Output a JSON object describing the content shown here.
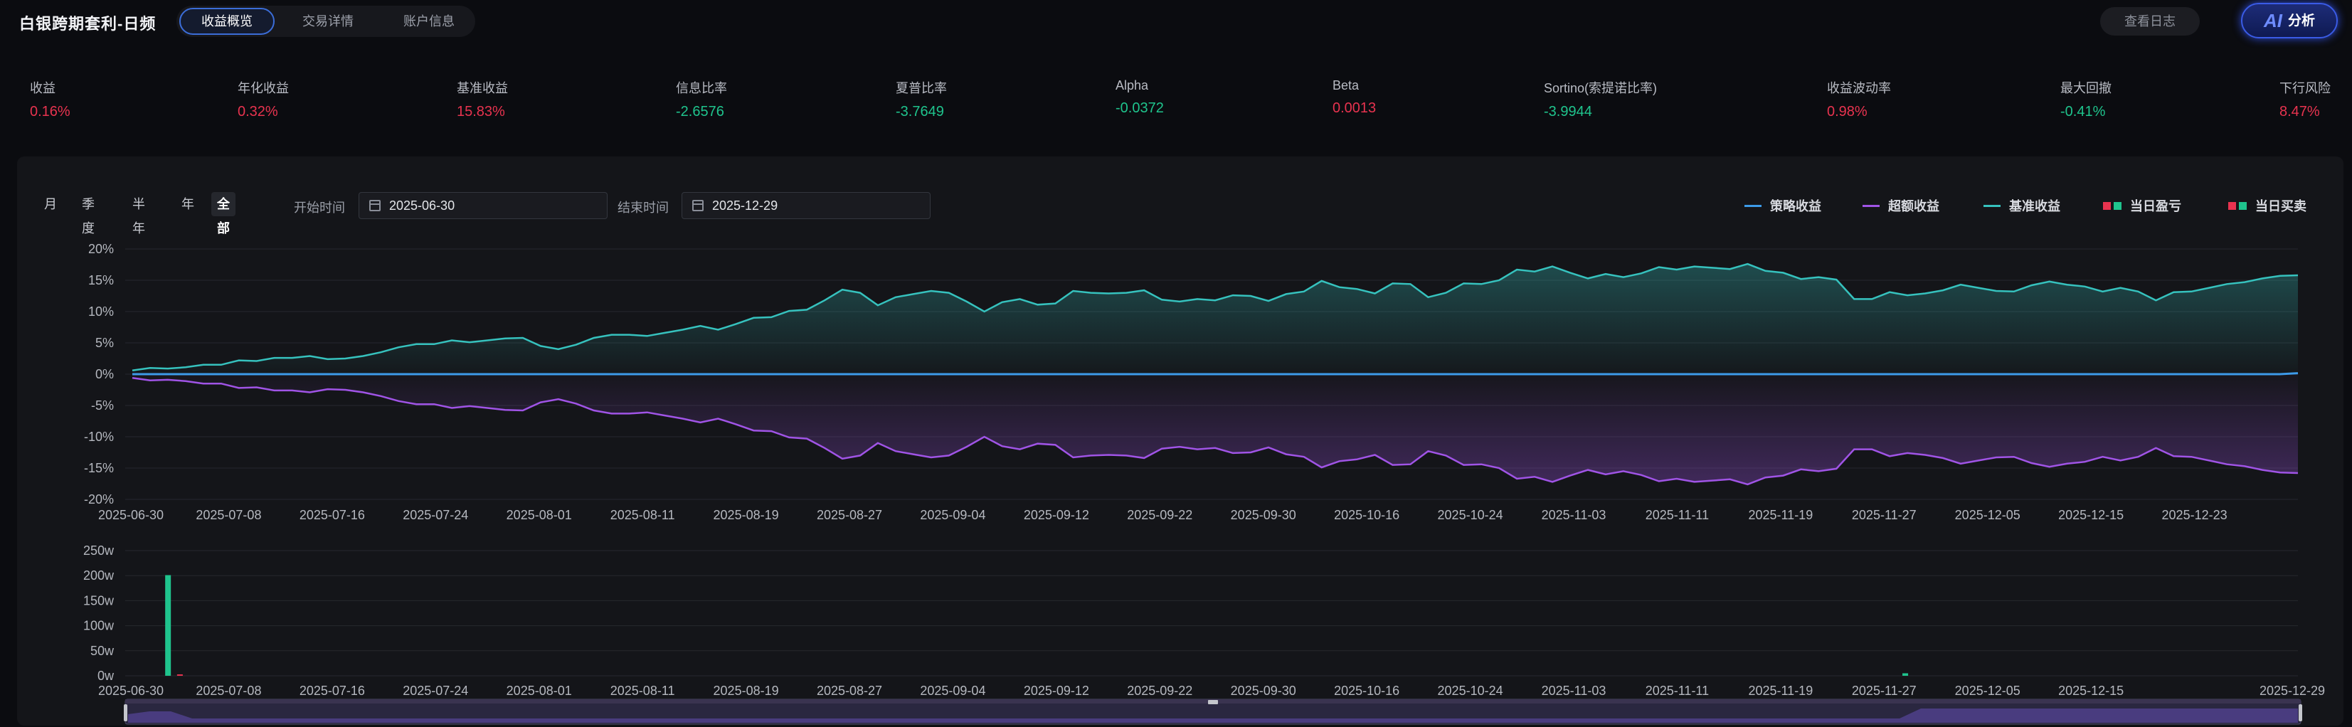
{
  "app": {
    "title": "白银跨期套利-日频"
  },
  "tabs": [
    {
      "label": "收益概览",
      "active": true
    },
    {
      "label": "交易详情",
      "active": false
    },
    {
      "label": "账户信息",
      "active": false
    }
  ],
  "header_actions": {
    "log_label": "查看日志",
    "ai_icon_text": "AI",
    "ai_label": "分析"
  },
  "metrics": [
    {
      "label": "收益",
      "value": "0.16%",
      "tone": "red"
    },
    {
      "label": "年化收益",
      "value": "0.32%",
      "tone": "red"
    },
    {
      "label": "基准收益",
      "value": "15.83%",
      "tone": "red"
    },
    {
      "label": "信息比率",
      "value": "-2.6576",
      "tone": "green"
    },
    {
      "label": "夏普比率",
      "value": "-3.7649",
      "tone": "green"
    },
    {
      "label": "Alpha",
      "value": "-0.0372",
      "tone": "green"
    },
    {
      "label": "Beta",
      "value": "0.0013",
      "tone": "red"
    },
    {
      "label": "Sortino(索提诺比率)",
      "value": "-3.9944",
      "tone": "green"
    },
    {
      "label": "收益波动率",
      "value": "0.98%",
      "tone": "red"
    },
    {
      "label": "最大回撤",
      "value": "-0.41%",
      "tone": "green"
    },
    {
      "label": "下行风险",
      "value": "8.47%",
      "tone": "red"
    }
  ],
  "periods": [
    {
      "label": "月",
      "active": false
    },
    {
      "label": "季度",
      "active": false
    },
    {
      "label": "半年",
      "active": false
    },
    {
      "label": "年",
      "active": false
    },
    {
      "label": "全部",
      "active": true
    }
  ],
  "date_range": {
    "start_label": "开始时间",
    "start_value": "2025-06-30",
    "end_label": "结束时间",
    "end_value": "2025-12-29"
  },
  "legend": [
    {
      "label": "策略收益",
      "color": "#3d9be9",
      "kind": "line"
    },
    {
      "label": "超额收益",
      "color": "#a054e6",
      "kind": "line"
    },
    {
      "label": "基准收益",
      "color": "#36c2be",
      "kind": "line"
    },
    {
      "label": "当日盈亏",
      "colors": [
        "#e8334f",
        "#1fc48d"
      ],
      "kind": "squares"
    },
    {
      "label": "当日买卖",
      "colors": [
        "#e8334f",
        "#1fc48d"
      ],
      "kind": "squares"
    }
  ],
  "chart_data": [
    {
      "type": "line",
      "ylim": [
        -20,
        20
      ],
      "yticks": [
        "20%",
        "15%",
        "10%",
        "5%",
        "0%",
        "-5%",
        "-10%",
        "-15%",
        "-20%"
      ],
      "x_start": "2025-06-30",
      "x_end": "2025-12-29",
      "x_tick_labels": [
        "2025-06-30",
        "2025-07-08",
        "2025-07-16",
        "2025-07-24",
        "2025-08-01",
        "2025-08-11",
        "2025-08-19",
        "2025-08-27",
        "2025-09-04",
        "2025-09-12",
        "2025-09-22",
        "2025-09-30",
        "2025-10-16",
        "2025-10-24",
        "2025-11-03",
        "2025-11-11",
        "2025-11-19",
        "2025-11-27",
        "2025-12-05",
        "2025-12-15",
        "2025-12-23"
      ],
      "series": [
        {
          "name": "基准收益",
          "color": "#36c2be",
          "values": [
            0.6,
            1.0,
            0.9,
            1.1,
            1.5,
            1.5,
            2.2,
            2.1,
            2.6,
            2.6,
            2.9,
            2.4,
            2.5,
            2.9,
            3.5,
            4.3,
            4.8,
            4.8,
            5.4,
            5.1,
            5.4,
            5.7,
            5.8,
            4.5,
            4.0,
            4.7,
            5.8,
            6.3,
            6.3,
            6.1,
            6.6,
            7.1,
            7.7,
            7.1,
            8.0,
            9.0,
            9.1,
            10.1,
            10.3,
            11.8,
            13.5,
            13.0,
            11.0,
            12.3,
            12.8,
            13.3,
            13.0,
            11.6,
            10.0,
            11.5,
            12.0,
            11.1,
            11.3,
            13.3,
            13.0,
            12.9,
            13.0,
            13.4,
            11.9,
            11.6,
            12.0,
            11.8,
            12.6,
            12.5,
            11.7,
            12.8,
            13.2,
            14.9,
            13.9,
            13.6,
            12.9,
            14.5,
            14.4,
            12.3,
            13.0,
            14.5,
            14.4,
            15.0,
            16.7,
            16.4,
            17.2,
            16.2,
            15.3,
            16.0,
            15.5,
            16.1,
            17.1,
            16.7,
            17.2,
            17.0,
            16.8,
            17.6,
            16.5,
            16.2,
            15.2,
            15.5,
            15.1,
            12.0,
            12.0,
            13.1,
            12.6,
            12.9,
            13.4,
            14.3,
            13.8,
            13.3,
            13.2,
            14.2,
            14.8,
            14.3,
            14.0,
            13.2,
            13.8,
            13.2,
            11.8,
            13.1,
            13.2,
            13.8,
            14.4,
            14.7,
            15.3,
            15.7,
            15.8
          ]
        },
        {
          "name": "超额收益",
          "color": "#a054e6",
          "values": [
            -0.6,
            -1.0,
            -0.9,
            -1.1,
            -1.5,
            -1.5,
            -2.2,
            -2.1,
            -2.6,
            -2.6,
            -2.9,
            -2.4,
            -2.5,
            -2.9,
            -3.5,
            -4.3,
            -4.8,
            -4.8,
            -5.4,
            -5.1,
            -5.4,
            -5.7,
            -5.8,
            -4.5,
            -4.0,
            -4.7,
            -5.8,
            -6.3,
            -6.3,
            -6.1,
            -6.6,
            -7.1,
            -7.7,
            -7.1,
            -8.0,
            -9.0,
            -9.1,
            -10.1,
            -10.3,
            -11.8,
            -13.5,
            -13.0,
            -11.0,
            -12.3,
            -12.8,
            -13.3,
            -13.0,
            -11.6,
            -10.0,
            -11.5,
            -12.0,
            -11.1,
            -11.3,
            -13.3,
            -13.0,
            -12.9,
            -13.0,
            -13.4,
            -11.9,
            -11.6,
            -12.0,
            -11.8,
            -12.6,
            -12.5,
            -11.7,
            -12.8,
            -13.2,
            -14.9,
            -13.9,
            -13.6,
            -12.9,
            -14.5,
            -14.4,
            -12.3,
            -13.0,
            -14.5,
            -14.4,
            -15.0,
            -16.7,
            -16.4,
            -17.2,
            -16.2,
            -15.3,
            -16.0,
            -15.5,
            -16.1,
            -17.1,
            -16.7,
            -17.2,
            -17.0,
            -16.8,
            -17.6,
            -16.5,
            -16.2,
            -15.2,
            -15.5,
            -15.1,
            -12.0,
            -12.0,
            -13.1,
            -12.6,
            -12.9,
            -13.4,
            -14.3,
            -13.8,
            -13.3,
            -13.2,
            -14.2,
            -14.8,
            -14.3,
            -14.0,
            -13.2,
            -13.8,
            -13.2,
            -11.8,
            -13.1,
            -13.2,
            -13.8,
            -14.4,
            -14.7,
            -15.3,
            -15.7,
            -15.8
          ]
        },
        {
          "name": "策略收益",
          "color": "#3d9be9",
          "values": [
            0,
            0,
            0,
            0,
            0,
            0,
            0,
            0,
            0,
            0,
            0,
            0,
            0,
            0,
            0,
            0,
            0,
            0,
            0,
            0,
            0,
            0,
            0,
            0,
            0,
            0,
            0,
            0,
            0,
            0,
            0,
            0,
            0,
            0,
            0,
            0,
            0,
            0,
            0,
            0,
            0,
            0,
            0,
            0,
            0,
            0,
            0,
            0,
            0,
            0,
            0,
            0,
            0,
            0,
            0,
            0,
            0,
            0,
            0,
            0,
            0,
            0,
            0,
            0,
            0,
            0,
            0,
            0,
            0,
            0,
            0,
            0,
            0,
            0,
            0,
            0,
            0,
            0,
            0,
            0,
            0,
            0,
            0,
            0,
            0,
            0,
            0,
            0,
            0,
            0,
            0,
            0,
            0,
            0,
            0,
            0,
            0,
            0,
            0,
            0,
            0,
            0,
            0,
            0,
            0,
            0,
            0,
            0,
            0,
            0,
            0,
            0,
            0,
            0,
            0,
            0,
            0,
            0,
            0,
            0.16
          ]
        }
      ]
    },
    {
      "type": "bar",
      "ylim": [
        0,
        250
      ],
      "yticks": [
        "250w",
        "200w",
        "150w",
        "100w",
        "50w",
        "0w"
      ],
      "x_tick_labels": [
        "2025-06-30",
        "2025-07-08",
        "2025-07-16",
        "2025-07-24",
        "2025-08-01",
        "2025-08-11",
        "2025-08-19",
        "2025-08-27",
        "2025-09-04",
        "2025-09-12",
        "2025-09-22",
        "2025-09-30",
        "2025-10-16",
        "2025-10-24",
        "2025-11-03",
        "2025-11-11",
        "2025-11-19",
        "2025-11-27",
        "2025-12-05",
        "2025-12-15",
        "2025-12-29"
      ],
      "bars": [
        {
          "date": "2025-07-03",
          "value": 201,
          "color": "#1fc48d"
        },
        {
          "date": "2025-07-04",
          "value": 2,
          "color": "#e8334f"
        },
        {
          "date": "2025-11-26",
          "value": 5,
          "color": "#1fc48d"
        }
      ]
    }
  ]
}
